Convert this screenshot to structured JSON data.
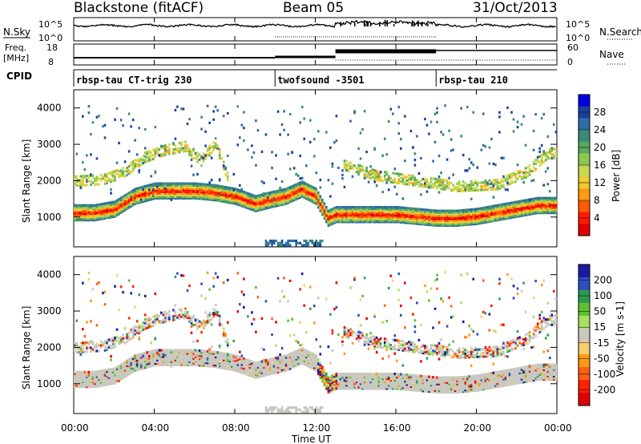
{
  "header": {
    "station": "Blackstone (fitACF)",
    "beam": "Beam 05",
    "date": "31/Oct/2013"
  },
  "top_panels": {
    "nsky_label": "N.Sky",
    "nsearch_label": "N.Search",
    "nsky_ticks": [
      "10^5",
      "10^0"
    ],
    "nsearch_ticks": [
      "10^5",
      "10^0"
    ],
    "freq_label": "Freq.",
    "freq_unit": "[MHz]",
    "freq_ticks": [
      "18",
      "8"
    ],
    "nave_label": "Nave",
    "nave_ticks": [
      "60",
      "0"
    ],
    "cpid_label": "CPID",
    "cpid_segments": [
      {
        "label": "rbsp-tau CT-trig 230",
        "start_hour": 0,
        "end_hour": 10
      },
      {
        "label": "twofsound -3501",
        "start_hour": 10,
        "end_hour": 18
      },
      {
        "label": "rbsp-tau 210",
        "start_hour": 18,
        "end_hour": 24
      }
    ]
  },
  "x_axis": {
    "label": "Time UT",
    "ticks": [
      "00:00",
      "04:00",
      "08:00",
      "12:00",
      "16:00",
      "20:00",
      "00:00"
    ],
    "range_hours": [
      0,
      24
    ]
  },
  "power_panel": {
    "ylabel": "Slant Range [km]",
    "yticks": [
      "4000",
      "3000",
      "2000",
      "1000"
    ],
    "colorbar_label": "Power [dB]",
    "colorbar_ticks": [
      "28",
      "24",
      "20",
      "16",
      "12",
      "8",
      "4"
    ],
    "colors": [
      "#0000e0",
      "#1a3fa0",
      "#2e6ba8",
      "#3a8a76",
      "#58a860",
      "#8cc850",
      "#c8d850",
      "#f0c830",
      "#ff9a10",
      "#ff5a00",
      "#ff1a00",
      "#e00000"
    ]
  },
  "velocity_panel": {
    "ylabel": "Slant Range [km]",
    "yticks": [
      "4000",
      "3000",
      "2000",
      "1000"
    ],
    "colorbar_label": "Velocity [m s-1]",
    "colorbar_ticks": [
      "200",
      "100",
      "50",
      "15",
      "-15",
      "-50",
      "-100",
      "-200"
    ],
    "colors": [
      "#1a1aa0",
      "#2f4fc0",
      "#2e9a50",
      "#60c030",
      "#a8e060",
      "#c8c8c0",
      "#f8d070",
      "#ff9a10",
      "#ff6010",
      "#ff2000",
      "#e00000"
    ],
    "ground_scatter_color": "#c8c8c0"
  },
  "chart_data": [
    {
      "type": "heatmap",
      "title": "Power",
      "xlabel": "Time UT",
      "ylabel": "Slant Range [km]",
      "xlim": [
        0,
        24
      ],
      "ylim": [
        180,
        4500
      ],
      "colorbar": {
        "label": "Power [dB]",
        "range": [
          0,
          32
        ]
      },
      "bands": [
        {
          "name": "main echo",
          "points": [
            [
              0,
              1150
            ],
            [
              1,
              1150
            ],
            [
              2,
              1250
            ],
            [
              3,
              1600
            ],
            [
              4,
              1750
            ],
            [
              5,
              1750
            ],
            [
              6,
              1750
            ],
            [
              7,
              1700
            ],
            [
              8,
              1600
            ],
            [
              9,
              1400
            ],
            [
              9.7,
              1500
            ],
            [
              10.5,
              1600
            ],
            [
              11.3,
              1800
            ],
            [
              12.0,
              1600
            ],
            [
              12.6,
              1000
            ],
            [
              13,
              1100
            ],
            [
              14,
              1100
            ],
            [
              15,
              1100
            ],
            [
              16,
              1100
            ],
            [
              17,
              1050
            ],
            [
              18,
              1000
            ],
            [
              19,
              1000
            ],
            [
              20,
              1050
            ],
            [
              21,
              1150
            ],
            [
              22,
              1250
            ],
            [
              23,
              1350
            ],
            [
              24,
              1350
            ]
          ]
        },
        {
          "name": "upper echo",
          "points": [
            [
              0.2,
              2050
            ],
            [
              1.5,
              2100
            ],
            [
              2.5,
              2300
            ],
            [
              3.5,
              2700
            ],
            [
              4.5,
              2900
            ],
            [
              5.5,
              3000
            ],
            [
              6.3,
              2600
            ],
            [
              7.0,
              3100
            ],
            [
              7.6,
              2200
            ],
            [
              13.3,
              2500
            ],
            [
              15,
              2200
            ],
            [
              17,
              2050
            ],
            [
              19,
              1900
            ],
            [
              21,
              1950
            ],
            [
              22.5,
              2300
            ],
            [
              23.5,
              2800
            ]
          ]
        }
      ]
    },
    {
      "type": "heatmap",
      "title": "Velocity",
      "xlabel": "Time UT",
      "ylabel": "Slant Range [km]",
      "xlim": [
        0,
        24
      ],
      "ylim": [
        180,
        4500
      ],
      "colorbar": {
        "label": "Velocity [m s-1]",
        "range": [
          -250,
          250
        ]
      }
    },
    {
      "type": "line",
      "title": "N.Sky",
      "x": [
        0,
        4,
        8,
        10,
        12,
        13,
        14,
        16,
        18,
        20,
        22,
        24
      ],
      "values": [
        1000,
        1200,
        1100,
        900,
        1000,
        1500,
        3000,
        2500,
        1500,
        1200,
        1300,
        1100
      ]
    },
    {
      "type": "line",
      "title": "Freq.",
      "x": [
        0,
        10,
        10,
        13,
        13,
        18,
        18,
        24
      ],
      "values": [
        9,
        9,
        9.5,
        9.5,
        15,
        15,
        15,
        15
      ]
    }
  ]
}
